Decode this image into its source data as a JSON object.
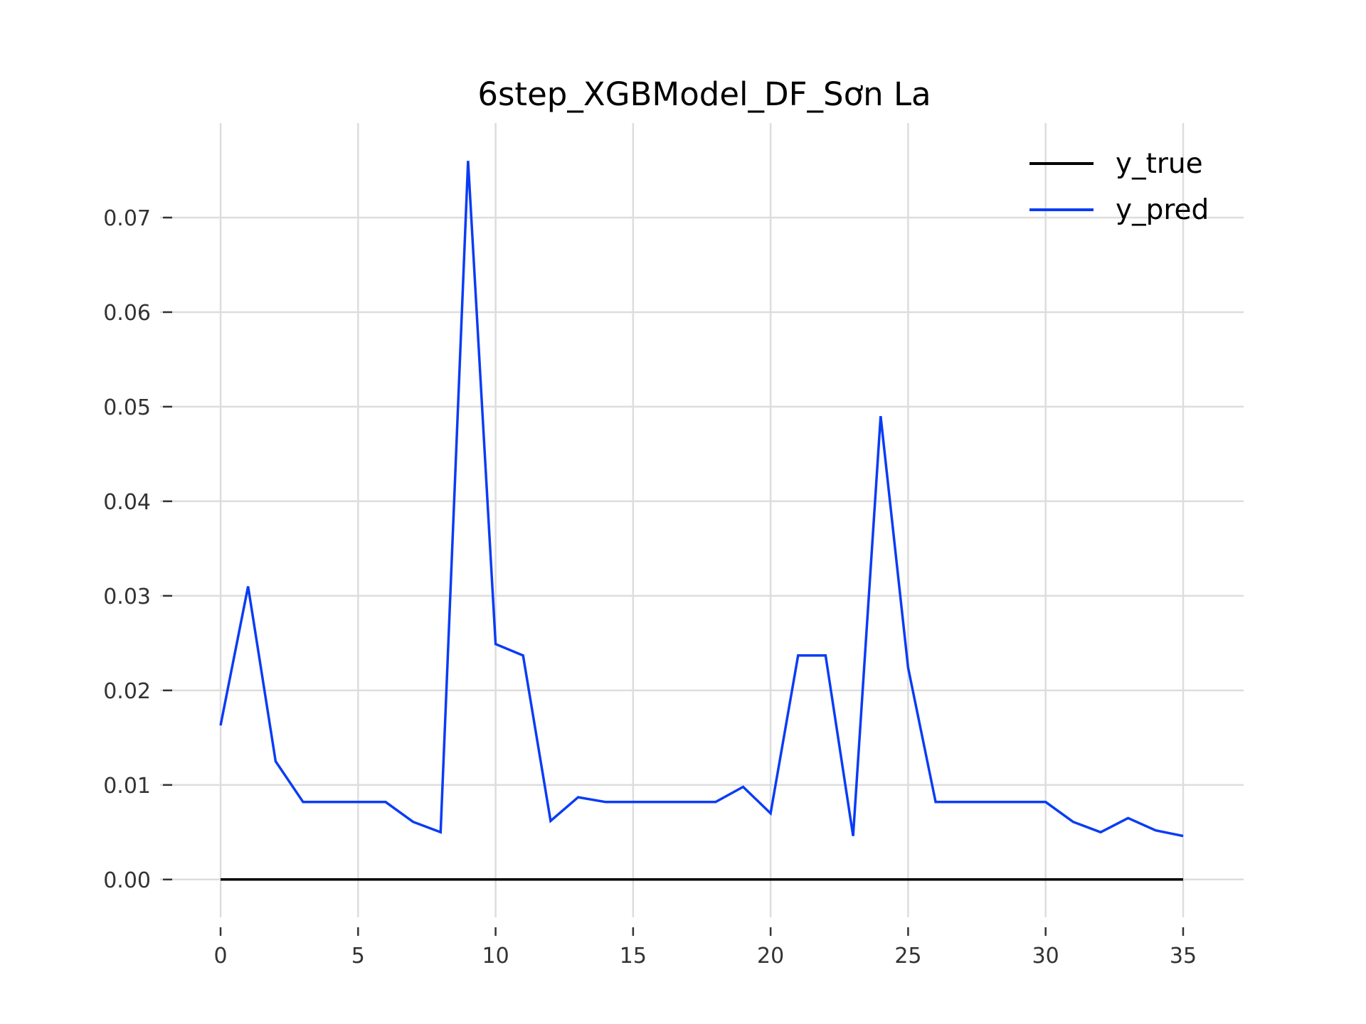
{
  "chart_data": {
    "type": "line",
    "title": "6step_XGBModel_DF_Sơn La",
    "xlabel": "",
    "ylabel": "",
    "xlim": [
      -2.2,
      37.2
    ],
    "ylim": [
      -0.004,
      0.08
    ],
    "x_ticks": [
      0,
      5,
      10,
      15,
      20,
      25,
      30,
      35
    ],
    "y_ticks": [
      0.0,
      0.01,
      0.02,
      0.03,
      0.04,
      0.05,
      0.06,
      0.07
    ],
    "y_tick_labels": [
      "0.00",
      "0.01",
      "0.02",
      "0.03",
      "0.04",
      "0.05",
      "0.06",
      "0.07"
    ],
    "grid": true,
    "legend_position": "top-right",
    "x": [
      0,
      1,
      2,
      3,
      4,
      5,
      6,
      7,
      8,
      9,
      10,
      11,
      12,
      13,
      14,
      15,
      16,
      17,
      18,
      19,
      20,
      21,
      22,
      23,
      24,
      25,
      26,
      27,
      28,
      29,
      30,
      31,
      32,
      33,
      34,
      35
    ],
    "series": [
      {
        "name": "y_true",
        "color": "#000000",
        "values": [
          0,
          0,
          0,
          0,
          0,
          0,
          0,
          0,
          0,
          0,
          0,
          0,
          0,
          0,
          0,
          0,
          0,
          0,
          0,
          0,
          0,
          0,
          0,
          0,
          0,
          0,
          0,
          0,
          0,
          0,
          0,
          0,
          0,
          0,
          0,
          0
        ]
      },
      {
        "name": "y_pred",
        "color": "#0a3cf5",
        "values": [
          0.0163,
          0.031,
          0.0125,
          0.0082,
          0.0082,
          0.0082,
          0.0082,
          0.0061,
          0.005,
          0.076,
          0.0249,
          0.0237,
          0.0062,
          0.0087,
          0.0082,
          0.0082,
          0.0082,
          0.0082,
          0.0082,
          0.0098,
          0.007,
          0.0237,
          0.0237,
          0.0046,
          0.049,
          0.0224,
          0.0082,
          0.0082,
          0.0082,
          0.0082,
          0.0082,
          0.0061,
          0.005,
          0.0065,
          0.0052,
          0.0046
        ]
      }
    ]
  }
}
